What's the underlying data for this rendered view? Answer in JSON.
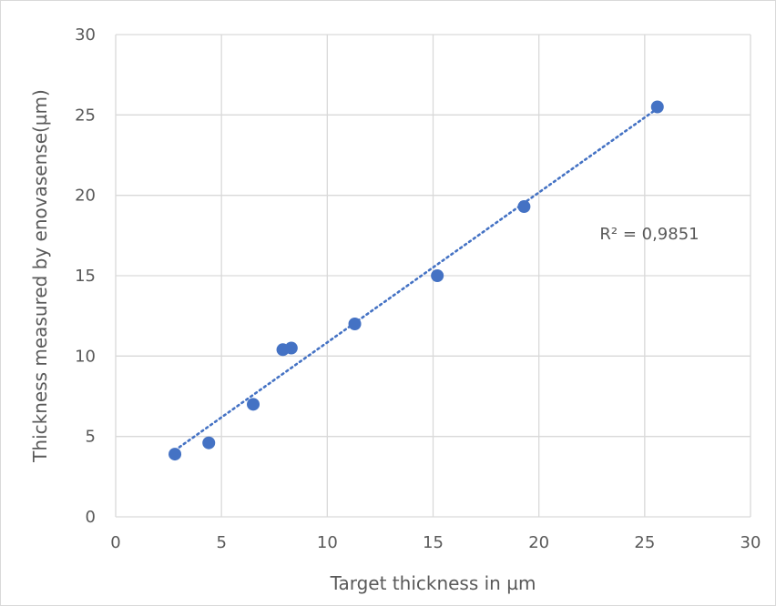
{
  "chart_data": {
    "type": "scatter",
    "title": "",
    "xlabel": "Target thickness in µm",
    "ylabel": "Thickness measured by enovasense(µm)",
    "xlim": [
      0,
      30
    ],
    "ylim": [
      0,
      30
    ],
    "xticks": [
      0,
      5,
      10,
      15,
      20,
      25,
      30
    ],
    "yticks": [
      0,
      5,
      10,
      15,
      20,
      25,
      30
    ],
    "grid": true,
    "legend": "none",
    "points": [
      {
        "x": 2.8,
        "y": 3.9
      },
      {
        "x": 4.4,
        "y": 4.6
      },
      {
        "x": 6.5,
        "y": 7.0
      },
      {
        "x": 7.9,
        "y": 10.4
      },
      {
        "x": 8.3,
        "y": 10.5
      },
      {
        "x": 11.3,
        "y": 12.0
      },
      {
        "x": 15.2,
        "y": 15.0
      },
      {
        "x": 19.3,
        "y": 19.3
      },
      {
        "x": 25.6,
        "y": 25.5
      }
    ],
    "trendline": {
      "type": "linear",
      "style": "dotted",
      "x_range": [
        2.8,
        25.6
      ],
      "annotation": "R² = 0,9851"
    },
    "colors": {
      "marker": "#4472C4",
      "trendline": "#4472C4",
      "grid": "#d9d9d9",
      "text": "#595959"
    }
  }
}
